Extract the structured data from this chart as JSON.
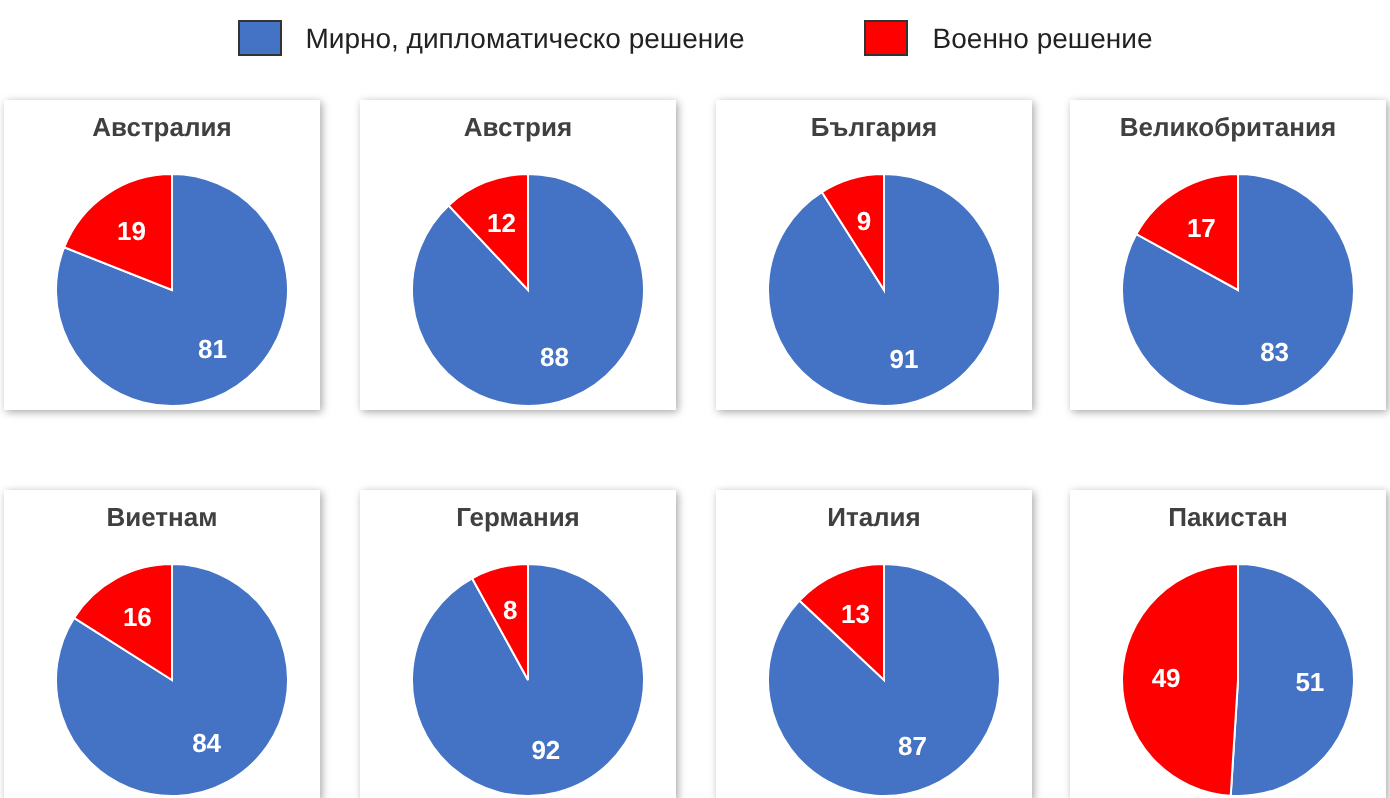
{
  "chart_data": [
    {
      "type": "pie",
      "title": "Австралия",
      "categories": [
        "Мирно, дипломатическо решение",
        "Военно решение"
      ],
      "values": [
        81,
        19
      ],
      "colors": [
        "#4472c4",
        "#ff0000"
      ],
      "data_labels": true,
      "legend": "top"
    },
    {
      "type": "pie",
      "title": "Австрия",
      "categories": [
        null,
        null
      ],
      "values": [
        88,
        12
      ],
      "colors": [
        "#4472c4",
        "#ff0000"
      ],
      "data_labels": true
    },
    {
      "type": "pie",
      "title": "България",
      "categories": [
        null,
        null
      ],
      "values": [
        91,
        9
      ],
      "colors": [
        "#4472c4",
        "#ff0000"
      ],
      "data_labels": true
    },
    {
      "type": "pie",
      "title": "Великобритания",
      "categories": [
        null,
        null
      ],
      "values": [
        83,
        17
      ],
      "colors": [
        "#4472c4",
        "#ff0000"
      ],
      "data_labels": true
    },
    {
      "type": "pie",
      "title": "Виетнам",
      "categories": [
        null,
        null
      ],
      "values": [
        84,
        16
      ],
      "colors": [
        "#4472c4",
        "#ff0000"
      ],
      "data_labels": true
    },
    {
      "type": "pie",
      "title": "Германия",
      "categories": [
        null,
        null
      ],
      "values": [
        92,
        8
      ],
      "colors": [
        "#4472c4",
        "#ff0000"
      ],
      "data_labels": true
    },
    {
      "type": "pie",
      "title": "Италия",
      "categories": [
        null,
        null
      ],
      "values": [
        87,
        13
      ],
      "colors": [
        "#4472c4",
        "#ff0000"
      ],
      "data_labels": true
    },
    {
      "type": "pie",
      "title": "Пакистан",
      "categories": [
        null,
        null
      ],
      "values": [
        51,
        49
      ],
      "colors": [
        "#4472c4",
        "#ff0000"
      ],
      "data_labels": true
    }
  ]
}
